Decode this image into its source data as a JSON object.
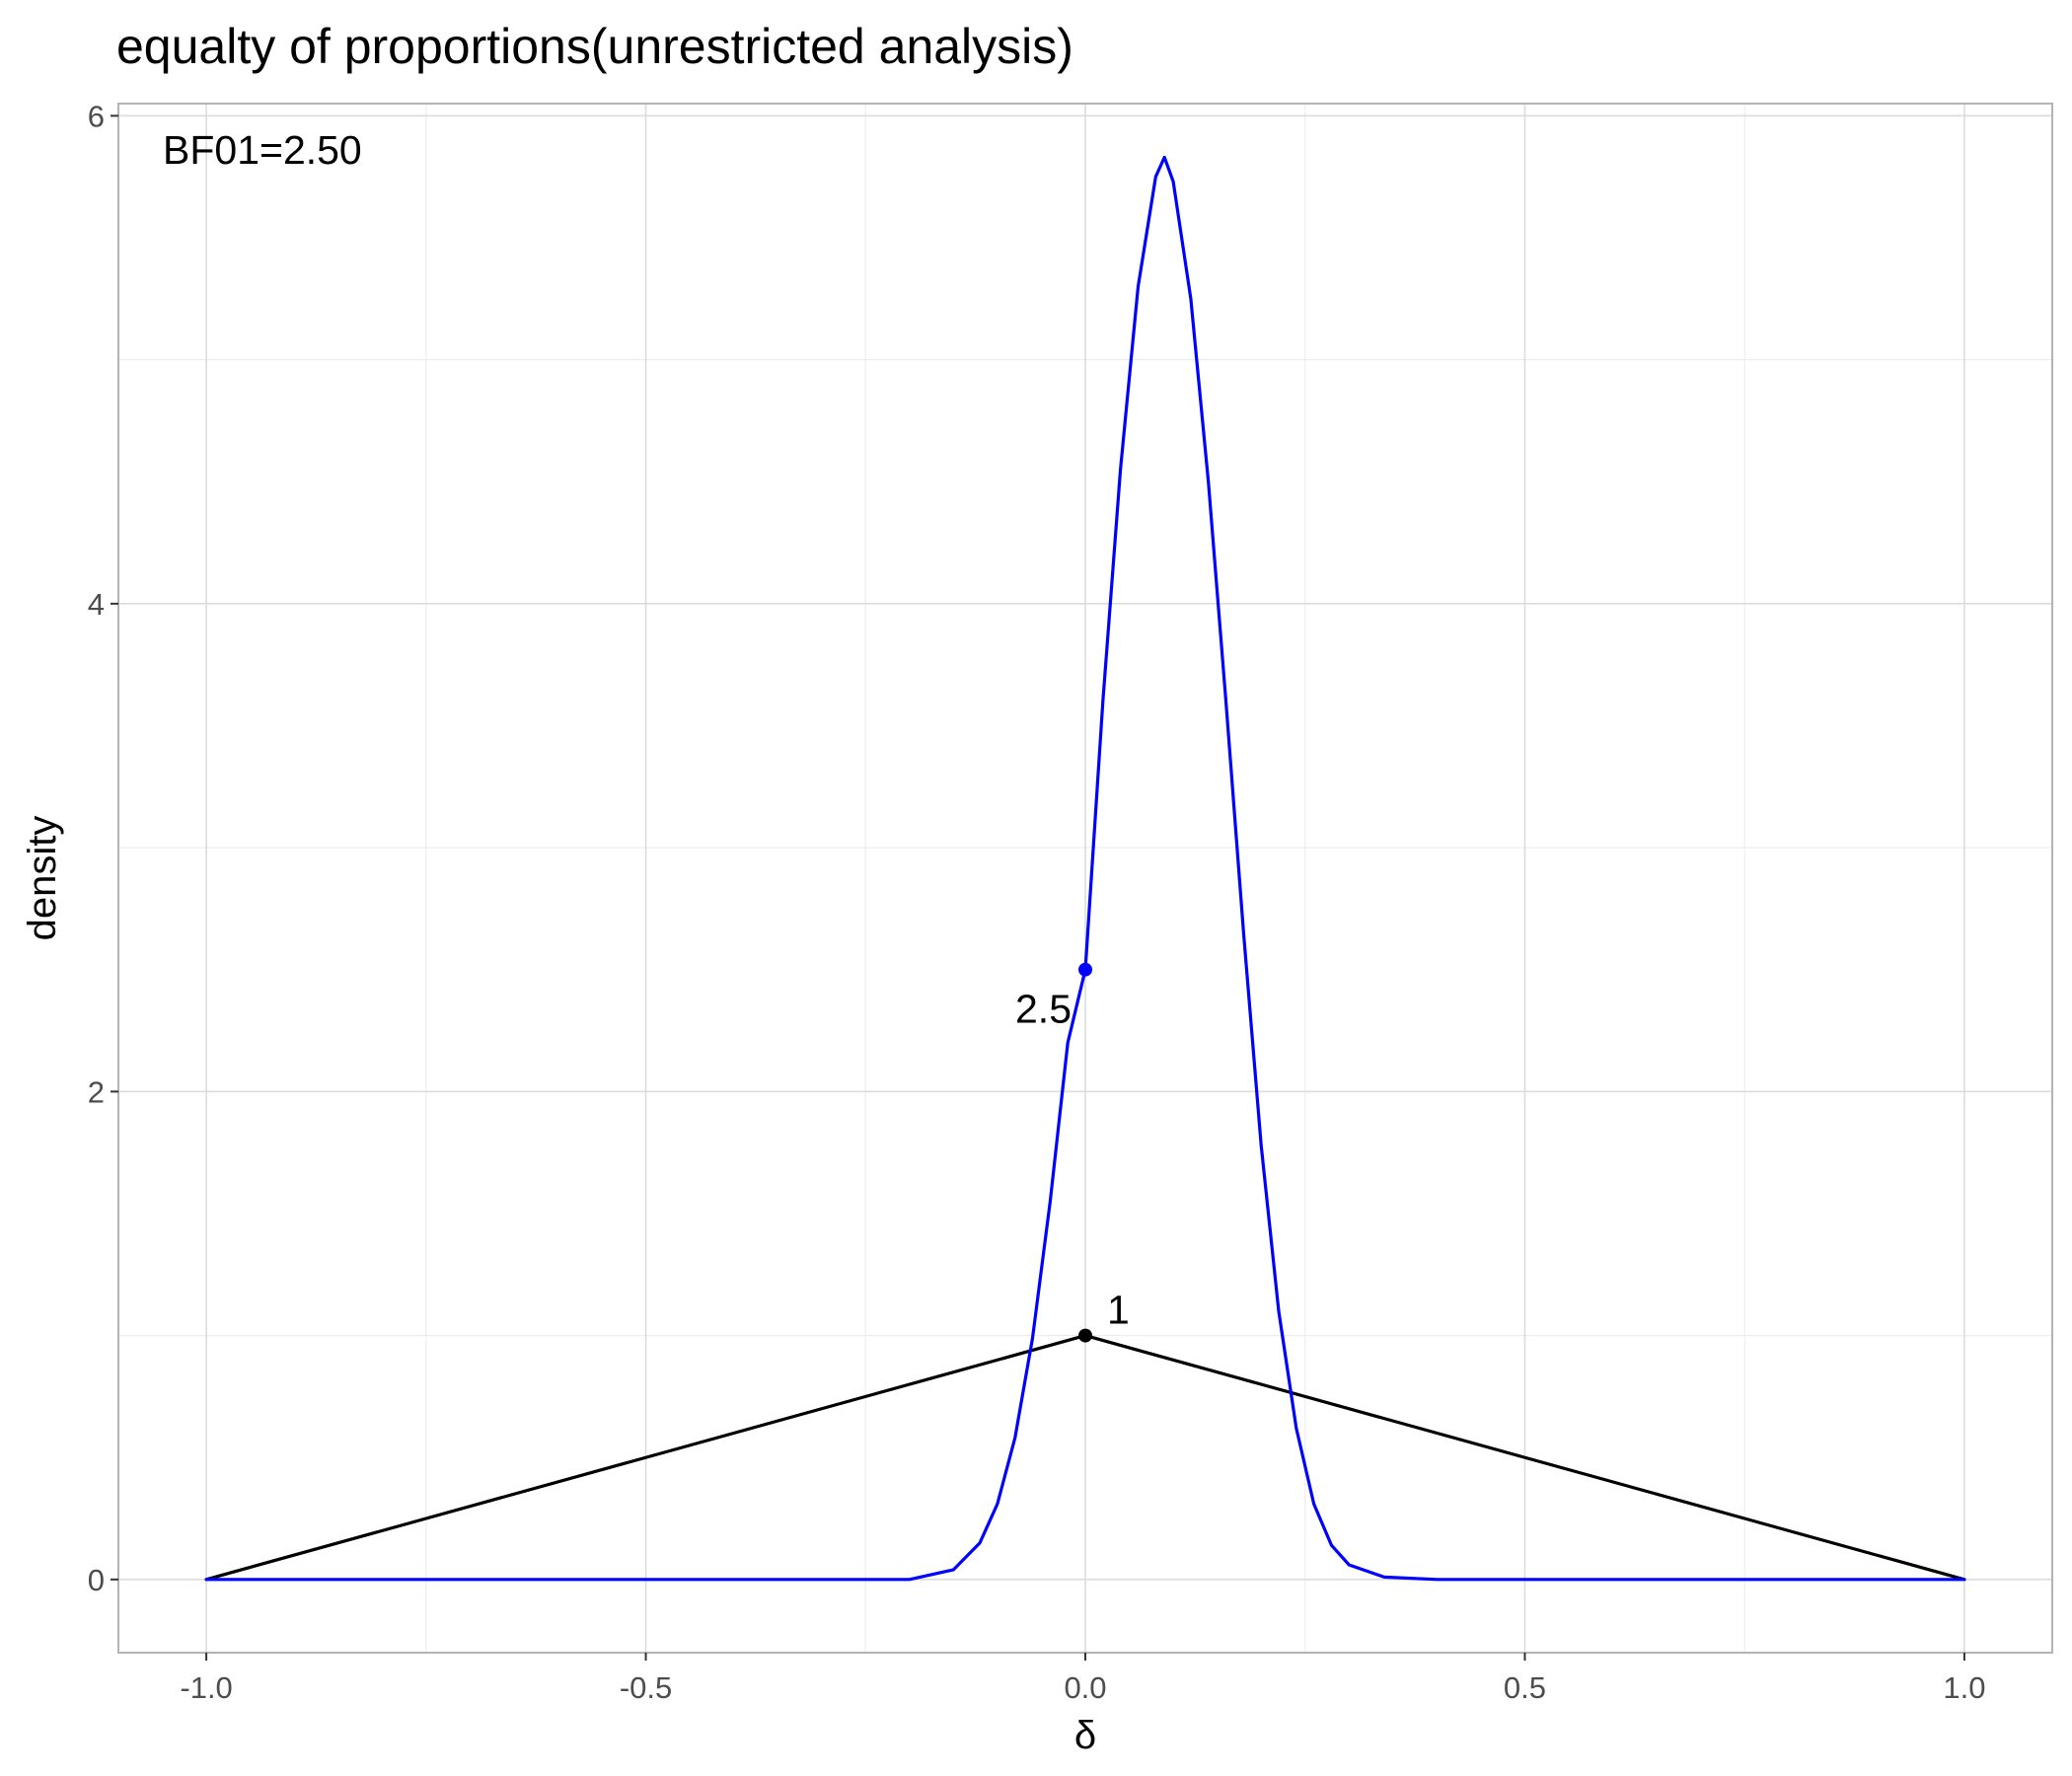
{
  "chart_data": {
    "type": "line",
    "title": "equalty of proportions(unrestricted analysis)",
    "xlabel": "δ",
    "ylabel": "density",
    "xlim": [
      -1.1,
      1.1
    ],
    "ylim": [
      -0.3,
      6.05
    ],
    "x_ticks": [
      -1.0,
      -0.5,
      0.0,
      0.5,
      1.0
    ],
    "x_tick_labels": [
      "-1.0",
      "-0.5",
      "0.0",
      "0.5",
      "1.0"
    ],
    "y_ticks": [
      0,
      2,
      4,
      6
    ],
    "y_tick_labels": [
      "0",
      "2",
      "4",
      "6"
    ],
    "grid": true,
    "annotation": "BF01=2.50",
    "series": [
      {
        "color": "#000000",
        "x": [
          -1.0,
          0.0,
          1.0
        ],
        "y": [
          0,
          1,
          0
        ]
      },
      {
        "color": "#0000ff",
        "x": [
          -1.0,
          -0.4,
          -0.2,
          -0.15,
          -0.12,
          -0.1,
          -0.08,
          -0.06,
          -0.04,
          -0.02,
          0.0,
          0.02,
          0.04,
          0.06,
          0.08,
          0.09,
          0.1,
          0.12,
          0.14,
          0.16,
          0.18,
          0.2,
          0.22,
          0.24,
          0.26,
          0.28,
          0.3,
          0.34,
          0.4,
          1.0
        ],
        "y": [
          0,
          0,
          0,
          0.04,
          0.15,
          0.31,
          0.58,
          0.99,
          1.55,
          2.2,
          2.5,
          3.6,
          4.55,
          5.3,
          5.75,
          5.83,
          5.73,
          5.25,
          4.5,
          3.6,
          2.65,
          1.78,
          1.1,
          0.62,
          0.31,
          0.14,
          0.06,
          0.01,
          0,
          0
        ]
      }
    ],
    "points": [
      {
        "x": 0.0,
        "y": 2.5,
        "color": "#0000ff",
        "label": "2.5"
      },
      {
        "x": 0.0,
        "y": 1.0,
        "color": "#000000",
        "label": "1"
      }
    ]
  }
}
